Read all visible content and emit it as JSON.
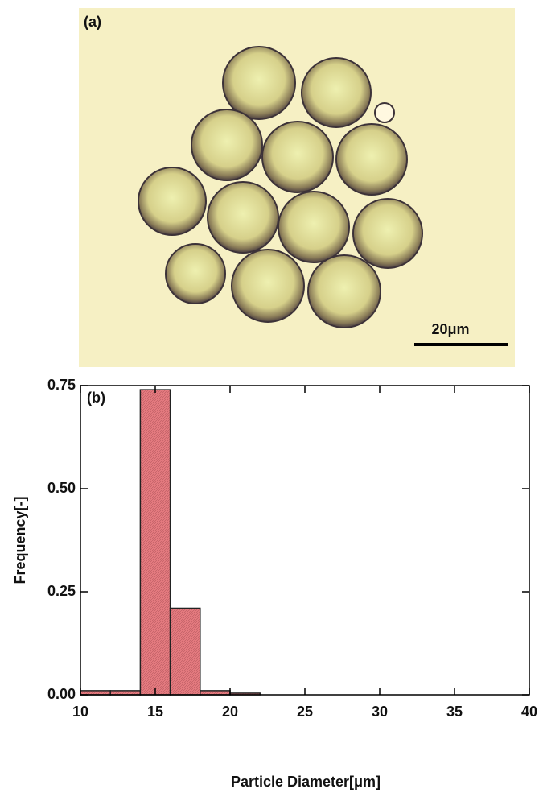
{
  "photo": {
    "label": "(a)",
    "scale_bar": "20μm"
  },
  "chart_data": {
    "type": "histogram",
    "panel_label": "(b)",
    "x_label": "Particle Diameter[μm]",
    "y_label": "Frequency[-]",
    "bins": [
      10,
      12,
      14,
      16,
      18,
      20,
      22
    ],
    "values": [
      0.01,
      0.01,
      0.74,
      0.21,
      0.01,
      0.004
    ],
    "color": "#e57b80",
    "xlim": [
      10,
      40
    ],
    "xticks": [
      10,
      15,
      20,
      25,
      30,
      35,
      40
    ],
    "ylim": [
      0,
      0.75
    ],
    "yticks": [
      {
        "value": 0,
        "label": "0.00"
      },
      {
        "value": 0.25,
        "label": "0.25"
      },
      {
        "value": 0.5,
        "label": "0.50"
      },
      {
        "value": 0.75,
        "label": "0.75"
      }
    ]
  }
}
